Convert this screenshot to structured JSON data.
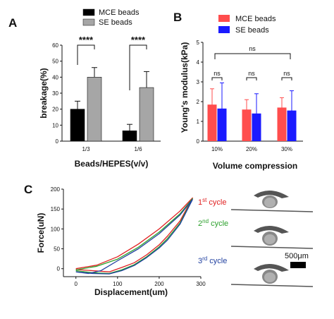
{
  "figure": {
    "panels": [
      "A",
      "B",
      "C"
    ]
  },
  "chart_data": [
    {
      "panel": "A",
      "type": "bar",
      "categories": [
        "1/3",
        "1/6"
      ],
      "series": [
        {
          "name": "MCE beads",
          "values": [
            20,
            6.5
          ],
          "errors": [
            5,
            4
          ],
          "color": "#000000"
        },
        {
          "name": "SE beads",
          "values": [
            40,
            33.5
          ],
          "errors": [
            6,
            10
          ],
          "color": "#a6a6a6"
        }
      ],
      "ylabel": "breakage(%)",
      "xlabel": "Beads/HEPES(v/v)",
      "ylim": [
        0,
        60
      ],
      "yticks": [
        0,
        10,
        20,
        30,
        40,
        50,
        60
      ],
      "legend_placement": "top",
      "significance": [
        "****",
        "****"
      ]
    },
    {
      "panel": "B",
      "type": "bar",
      "categories": [
        "10%",
        "20%",
        "30%"
      ],
      "series": [
        {
          "name": "MCE beads",
          "values": [
            1.85,
            1.6,
            1.7
          ],
          "errors": [
            0.8,
            0.5,
            0.5
          ],
          "color": "#ff4d4d"
        },
        {
          "name": "SE beads",
          "values": [
            1.65,
            1.4,
            1.55
          ],
          "errors": [
            1.3,
            1.0,
            1.0
          ],
          "color": "#1a1aff"
        }
      ],
      "ylabel": "Young's modulus(kPa)",
      "xlabel": "Volume compression",
      "ylim": [
        0,
        5
      ],
      "yticks": [
        0,
        1,
        2,
        3,
        4,
        5
      ],
      "legend_placement": "top",
      "significance": [
        "ns",
        "ns",
        "ns",
        "ns"
      ]
    },
    {
      "panel": "C",
      "type": "line",
      "xlabel": "Displacement(um)",
      "ylabel": "Force(uN)",
      "xlim": [
        -30,
        300
      ],
      "ylim": [
        -20,
        200
      ],
      "xticks": [
        0,
        100,
        200,
        300
      ],
      "yticks": [
        0,
        50,
        100,
        150,
        200
      ],
      "series": [
        {
          "name": "1st cycle",
          "color": "#e02020",
          "loading": [
            [
              0,
              0
            ],
            [
              50,
              9
            ],
            [
              100,
              30
            ],
            [
              150,
              62
            ],
            [
              200,
              100
            ],
            [
              250,
              145
            ],
            [
              280,
              178
            ]
          ],
          "unloading": [
            [
              280,
              178
            ],
            [
              250,
              120
            ],
            [
              220,
              82
            ],
            [
              200,
              60
            ],
            [
              170,
              35
            ],
            [
              140,
              15
            ],
            [
              110,
              3
            ],
            [
              80,
              -8
            ],
            [
              40,
              -5
            ],
            [
              0,
              -2
            ]
          ]
        },
        {
          "name": "2nd cycle",
          "color": "#2ca02c",
          "loading": [
            [
              0,
              -3
            ],
            [
              50,
              6
            ],
            [
              100,
              24
            ],
            [
              150,
              54
            ],
            [
              200,
              92
            ],
            [
              250,
              138
            ],
            [
              280,
              176
            ]
          ],
          "unloading": [
            [
              280,
              176
            ],
            [
              250,
              115
            ],
            [
              220,
              76
            ],
            [
              200,
              55
            ],
            [
              170,
              30
            ],
            [
              140,
              10
            ],
            [
              110,
              -3
            ],
            [
              80,
              -12
            ],
            [
              40,
              -10
            ],
            [
              0,
              -5
            ]
          ]
        },
        {
          "name": "3rd cycle",
          "color": "#1f3f9f",
          "loading": [
            [
              0,
              -8
            ],
            [
              30,
              -12
            ],
            [
              60,
              -5
            ],
            [
              100,
              20
            ],
            [
              150,
              50
            ],
            [
              200,
              88
            ],
            [
              250,
              135
            ],
            [
              280,
              174
            ]
          ],
          "unloading": [
            [
              280,
              174
            ],
            [
              250,
              112
            ],
            [
              220,
              72
            ],
            [
              200,
              52
            ],
            [
              170,
              28
            ],
            [
              140,
              8
            ],
            [
              110,
              -5
            ],
            [
              80,
              -13
            ],
            [
              40,
              -12
            ],
            [
              0,
              -8
            ]
          ]
        }
      ],
      "legend_placement": "right",
      "cycle_labels": [
        {
          "ord": "1",
          "sup": "st",
          "rest": " cycle",
          "color": "#e02020"
        },
        {
          "ord": "2",
          "sup": "nd",
          "rest": " cycle",
          "color": "#2ca02c"
        },
        {
          "ord": "3",
          "sup": "rd",
          "rest": " cycle",
          "color": "#1f3f9f"
        }
      ],
      "scale_bar": "500μm"
    }
  ]
}
